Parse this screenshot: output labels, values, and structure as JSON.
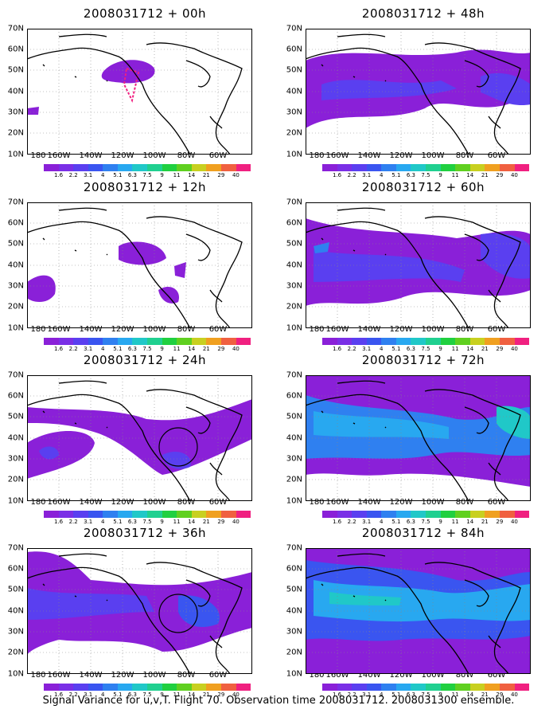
{
  "caption": "Signal Variance for u,v,T. Flight 70. Observation time 2008031712. 2008031300 ensemble.",
  "lat_labels": [
    "70N",
    "60N",
    "50N",
    "40N",
    "30N",
    "20N",
    "10N"
  ],
  "lon_labels": [
    "180",
    "160W",
    "140W",
    "120W",
    "100W",
    "80W",
    "60W"
  ],
  "colorbar": {
    "labels": [
      "1.6",
      "2.2",
      "3.1",
      "4",
      "5.1",
      "6.3",
      "7.5",
      "9",
      "11",
      "14",
      "21",
      "29",
      "40"
    ],
    "colors": [
      "#8a20d8",
      "#7a2fe6",
      "#5a3ff0",
      "#3a55f0",
      "#2f80f0",
      "#28a8f0",
      "#20c8c8",
      "#20d090",
      "#20d040",
      "#60d020",
      "#c8d020",
      "#f0a020",
      "#f06040",
      "#f02080"
    ]
  },
  "panels": [
    {
      "title": "2008031712 + 00h"
    },
    {
      "title": "2008031712 + 48h"
    },
    {
      "title": "2008031712 + 12h"
    },
    {
      "title": "2008031712 + 60h"
    },
    {
      "title": "2008031712 + 24h"
    },
    {
      "title": "2008031712 + 72h"
    },
    {
      "title": "2008031712 + 36h"
    },
    {
      "title": "2008031712 + 84h"
    }
  ]
}
